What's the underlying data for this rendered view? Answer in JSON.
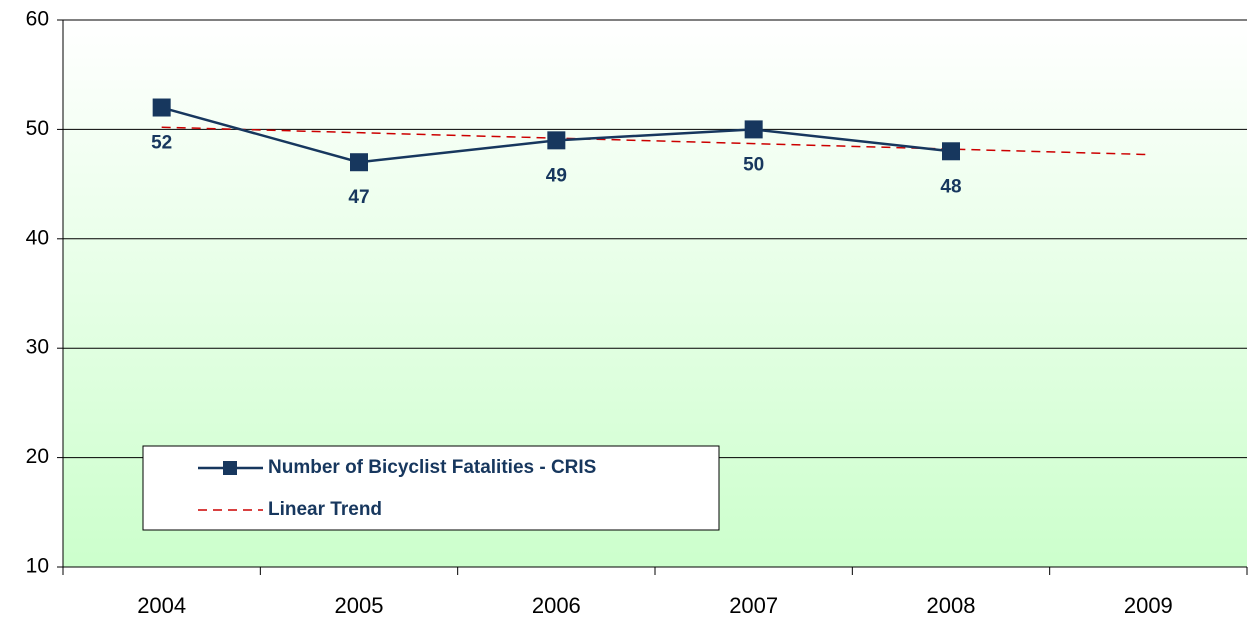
{
  "chart_data": {
    "type": "line",
    "categories": [
      "2004",
      "2005",
      "2006",
      "2007",
      "2008",
      "2009"
    ],
    "series": [
      {
        "name": "Number of Bicyclist Fatalities - CRIS",
        "color": "#17375e",
        "values": [
          52,
          47,
          49,
          50,
          48,
          null
        ],
        "marker": "square",
        "data_labels": true
      },
      {
        "name": "Linear Trend",
        "color": "#cc0000",
        "values": [
          50.2,
          49.7,
          49.2,
          48.7,
          48.2,
          47.7
        ],
        "dash": true
      }
    ],
    "ylim": [
      10,
      60
    ],
    "yticks": [
      10,
      20,
      30,
      40,
      50,
      60
    ],
    "grid": true,
    "legend": "lower left"
  }
}
